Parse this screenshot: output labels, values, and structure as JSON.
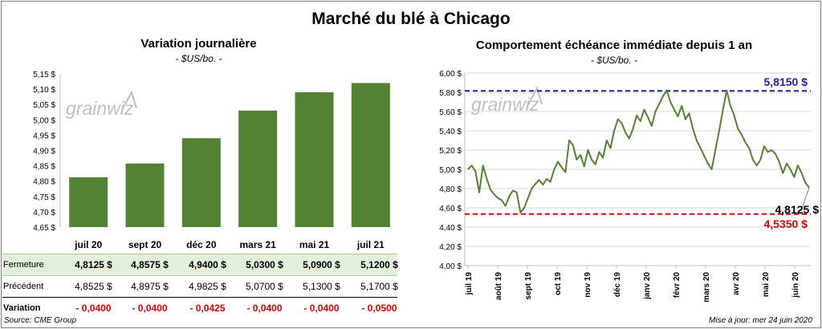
{
  "title": "Marché du blé à Chicago",
  "left": {
    "subtitle": "Variation journalière",
    "unit": "- $US/bo. -",
    "watermark": "grainwiz"
  },
  "right": {
    "subtitle": "Comportement échéance immédiate depuis 1 an",
    "unit": "- $US/bo. -",
    "watermark": "grainwiz"
  },
  "table": {
    "rows": [
      {
        "label": "Fermeture",
        "values": [
          "4,8125 $",
          "4,8575 $",
          "4,9400 $",
          "5,0300 $",
          "5,0900 $",
          "5,1200 $"
        ]
      },
      {
        "label": "Précédent",
        "values": [
          "4,8525 $",
          "4,8975 $",
          "4,9825 $",
          "5,0700 $",
          "5,1300 $",
          "5,1700 $"
        ]
      },
      {
        "label": "Variation",
        "values": [
          "- 0,0400",
          "- 0,0400",
          "- 0,0425",
          "- 0,0400",
          "- 0,0400",
          "- 0,0500"
        ]
      }
    ]
  },
  "footer": {
    "source": "Source: CME Group",
    "updated": "Mise à jour: mer 24 juin 2020"
  },
  "colors": {
    "bar": "#548235",
    "line": "#548235",
    "high": "#2020b0",
    "low": "#e00000"
  },
  "chart_data": [
    {
      "type": "bar",
      "categories": [
        "juil 20",
        "sept 20",
        "déc 20",
        "mars 21",
        "mai 21",
        "juil 21"
      ],
      "values": [
        4.8125,
        4.8575,
        4.94,
        5.03,
        5.09,
        5.12
      ],
      "ylim": [
        4.65,
        5.15
      ],
      "yticks": [
        "4,65 $",
        "4,70 $",
        "4,75 $",
        "4,80 $",
        "4,85 $",
        "4,90 $",
        "4,95 $",
        "5,00 $",
        "5,05 $",
        "5,10 $",
        "5,15 $"
      ],
      "grid": false
    },
    {
      "type": "line",
      "xticks": [
        "juil 19",
        "août 19",
        "sept 19",
        "oct 19",
        "nov 19",
        "déc 19",
        "janv 20",
        "févr 20",
        "mars 20",
        "avr 20",
        "mai 20",
        "juin 20"
      ],
      "ylim": [
        4.0,
        6.0
      ],
      "yticks": [
        "4,00 $",
        "4,20 $",
        "4,40 $",
        "4,60 $",
        "4,80 $",
        "5,00 $",
        "5,20 $",
        "5,40 $",
        "5,60 $",
        "5,80 $",
        "6,00 $"
      ],
      "high_line": {
        "value": 5.815,
        "label": "5,8150 $"
      },
      "low_line": {
        "value": 4.535,
        "label": "4,5350 $"
      },
      "last_label": "4,8125 $",
      "grid": true,
      "values": [
        5.0,
        5.04,
        4.98,
        4.76,
        5.04,
        4.9,
        4.79,
        4.74,
        4.7,
        4.68,
        4.62,
        4.72,
        4.78,
        4.76,
        4.55,
        4.6,
        4.7,
        4.8,
        4.85,
        4.89,
        4.84,
        4.9,
        4.87,
        5.0,
        5.08,
        5.02,
        4.97,
        5.3,
        5.25,
        5.1,
        5.15,
        5.03,
        5.2,
        5.1,
        5.05,
        5.18,
        5.12,
        5.3,
        5.22,
        5.4,
        5.52,
        5.48,
        5.38,
        5.32,
        5.42,
        5.56,
        5.5,
        5.62,
        5.54,
        5.45,
        5.6,
        5.68,
        5.76,
        5.82,
        5.7,
        5.62,
        5.55,
        5.66,
        5.52,
        5.58,
        5.42,
        5.3,
        5.22,
        5.14,
        5.06,
        5.0,
        5.2,
        5.4,
        5.62,
        5.82,
        5.66,
        5.56,
        5.42,
        5.36,
        5.28,
        5.22,
        5.1,
        5.04,
        5.1,
        5.24,
        5.18,
        5.2,
        5.16,
        5.08,
        4.96,
        5.06,
        5.0,
        4.92,
        5.04,
        4.96,
        4.86,
        4.81
      ]
    }
  ]
}
